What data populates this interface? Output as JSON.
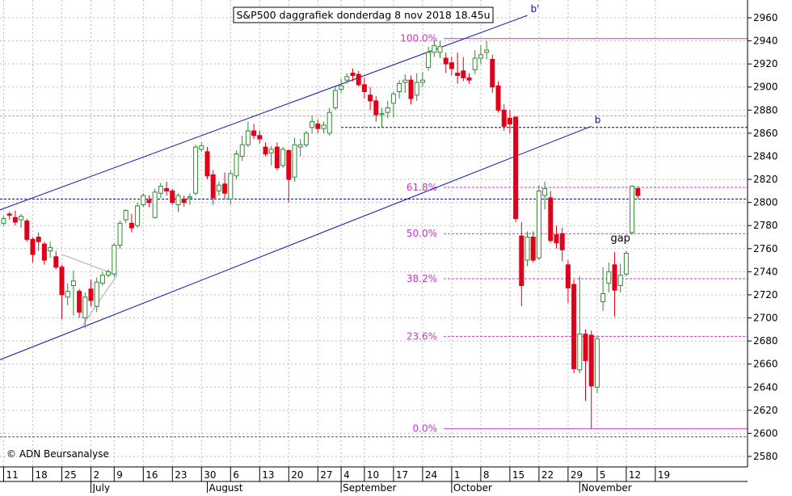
{
  "chart_data": {
    "type": "candlestick",
    "title": "S&P500 daggrafiek donderdag 8 nov 2018 18.45u",
    "copyright": "© ADN Beursanalyse",
    "ylim": [
      2570,
      2970
    ],
    "y_ticks": [
      2580,
      2600,
      2620,
      2640,
      2660,
      2680,
      2700,
      2720,
      2740,
      2760,
      2780,
      2800,
      2820,
      2840,
      2860,
      2880,
      2900,
      2920,
      2940,
      2960
    ],
    "x_day_ticks": [
      {
        "label": "11",
        "idx": 0
      },
      {
        "label": "18",
        "idx": 5
      },
      {
        "label": "25",
        "idx": 10
      },
      {
        "label": "2",
        "idx": 15
      },
      {
        "label": "9",
        "idx": 19
      },
      {
        "label": "16",
        "idx": 24
      },
      {
        "label": "23",
        "idx": 29
      },
      {
        "label": "30",
        "idx": 34
      },
      {
        "label": "6",
        "idx": 39
      },
      {
        "label": "13",
        "idx": 44
      },
      {
        "label": "20",
        "idx": 49
      },
      {
        "label": "27",
        "idx": 54
      },
      {
        "label": "4",
        "idx": 58
      },
      {
        "label": "10",
        "idx": 62
      },
      {
        "label": "17",
        "idx": 67
      },
      {
        "label": "24",
        "idx": 72
      },
      {
        "label": "1",
        "idx": 77
      },
      {
        "label": "8",
        "idx": 82
      },
      {
        "label": "15",
        "idx": 87
      },
      {
        "label": "22",
        "idx": 92
      },
      {
        "label": "29",
        "idx": 97
      },
      {
        "label": "5",
        "idx": 102
      },
      {
        "label": "12",
        "idx": 107
      },
      {
        "label": "19",
        "idx": 112
      }
    ],
    "months": [
      {
        "label": "July",
        "idx": 15
      },
      {
        "label": "August",
        "idx": 35
      },
      {
        "label": "September",
        "idx": 58
      },
      {
        "label": "October",
        "idx": 77
      },
      {
        "label": "November",
        "idx": 99
      }
    ],
    "candles": [
      {
        "o": 2782,
        "h": 2788,
        "l": 2780,
        "c": 2786
      },
      {
        "o": 2790,
        "h": 2792,
        "l": 2785,
        "c": 2789
      },
      {
        "o": 2787,
        "h": 2793,
        "l": 2780,
        "c": 2783
      },
      {
        "o": 2785,
        "h": 2790,
        "l": 2778,
        "c": 2788
      },
      {
        "o": 2784,
        "h": 2786,
        "l": 2766,
        "c": 2768
      },
      {
        "o": 2768,
        "h": 2770,
        "l": 2748,
        "c": 2755
      },
      {
        "o": 2770,
        "h": 2774,
        "l": 2758,
        "c": 2766
      },
      {
        "o": 2764,
        "h": 2766,
        "l": 2746,
        "c": 2750
      },
      {
        "o": 2758,
        "h": 2766,
        "l": 2752,
        "c": 2761
      },
      {
        "o": 2753,
        "h": 2758,
        "l": 2742,
        "c": 2744
      },
      {
        "o": 2744,
        "h": 2746,
        "l": 2699,
        "c": 2720
      },
      {
        "o": 2718,
        "h": 2730,
        "l": 2711,
        "c": 2723
      },
      {
        "o": 2728,
        "h": 2741,
        "l": 2702,
        "c": 2732
      },
      {
        "o": 2723,
        "h": 2725,
        "l": 2700,
        "c": 2705
      },
      {
        "o": 2700,
        "h": 2722,
        "l": 2691,
        "c": 2718
      },
      {
        "o": 2725,
        "h": 2733,
        "l": 2710,
        "c": 2715
      },
      {
        "o": 2710,
        "h": 2735,
        "l": 2705,
        "c": 2731
      },
      {
        "o": 2730,
        "h": 2740,
        "l": 2728,
        "c": 2737
      },
      {
        "o": 2737,
        "h": 2742,
        "l": 2735,
        "c": 2740
      },
      {
        "o": 2738,
        "h": 2765,
        "l": 2735,
        "c": 2763
      },
      {
        "o": 2763,
        "h": 2784,
        "l": 2760,
        "c": 2782
      },
      {
        "o": 2785,
        "h": 2794,
        "l": 2782,
        "c": 2793
      },
      {
        "o": 2782,
        "h": 2790,
        "l": 2774,
        "c": 2778
      },
      {
        "o": 2780,
        "h": 2800,
        "l": 2778,
        "c": 2797
      },
      {
        "o": 2798,
        "h": 2808,
        "l": 2796,
        "c": 2806
      },
      {
        "o": 2802,
        "h": 2806,
        "l": 2796,
        "c": 2800
      },
      {
        "o": 2787,
        "h": 2812,
        "l": 2786,
        "c": 2809
      },
      {
        "o": 2808,
        "h": 2817,
        "l": 2804,
        "c": 2814
      },
      {
        "o": 2812,
        "h": 2818,
        "l": 2806,
        "c": 2810
      },
      {
        "o": 2810,
        "h": 2812,
        "l": 2798,
        "c": 2800
      },
      {
        "o": 2798,
        "h": 2808,
        "l": 2792,
        "c": 2806
      },
      {
        "o": 2803,
        "h": 2806,
        "l": 2796,
        "c": 2800
      },
      {
        "o": 2804,
        "h": 2808,
        "l": 2798,
        "c": 2805
      },
      {
        "o": 2808,
        "h": 2850,
        "l": 2806,
        "c": 2848
      },
      {
        "o": 2846,
        "h": 2852,
        "l": 2844,
        "c": 2849
      },
      {
        "o": 2844,
        "h": 2848,
        "l": 2820,
        "c": 2823
      },
      {
        "o": 2824,
        "h": 2828,
        "l": 2798,
        "c": 2804
      },
      {
        "o": 2810,
        "h": 2818,
        "l": 2806,
        "c": 2815
      },
      {
        "o": 2816,
        "h": 2826,
        "l": 2803,
        "c": 2808
      },
      {
        "o": 2803,
        "h": 2828,
        "l": 2798,
        "c": 2825
      },
      {
        "o": 2823,
        "h": 2845,
        "l": 2820,
        "c": 2842
      },
      {
        "o": 2840,
        "h": 2858,
        "l": 2836,
        "c": 2850
      },
      {
        "o": 2850,
        "h": 2870,
        "l": 2848,
        "c": 2862
      },
      {
        "o": 2862,
        "h": 2868,
        "l": 2855,
        "c": 2858
      },
      {
        "o": 2858,
        "h": 2862,
        "l": 2851,
        "c": 2855
      },
      {
        "o": 2848,
        "h": 2852,
        "l": 2840,
        "c": 2842
      },
      {
        "o": 2843,
        "h": 2849,
        "l": 2832,
        "c": 2846
      },
      {
        "o": 2848,
        "h": 2852,
        "l": 2828,
        "c": 2830
      },
      {
        "o": 2832,
        "h": 2848,
        "l": 2830,
        "c": 2846
      },
      {
        "o": 2845,
        "h": 2846,
        "l": 2800,
        "c": 2820
      },
      {
        "o": 2822,
        "h": 2856,
        "l": 2818,
        "c": 2850
      },
      {
        "o": 2848,
        "h": 2855,
        "l": 2840,
        "c": 2850
      },
      {
        "o": 2850,
        "h": 2862,
        "l": 2848,
        "c": 2860
      },
      {
        "o": 2865,
        "h": 2875,
        "l": 2860,
        "c": 2870
      },
      {
        "o": 2868,
        "h": 2872,
        "l": 2860,
        "c": 2864
      },
      {
        "o": 2864,
        "h": 2870,
        "l": 2860,
        "c": 2867
      },
      {
        "o": 2860,
        "h": 2882,
        "l": 2858,
        "c": 2878
      },
      {
        "o": 2882,
        "h": 2900,
        "l": 2880,
        "c": 2897
      },
      {
        "o": 2898,
        "h": 2907,
        "l": 2895,
        "c": 2901
      },
      {
        "o": 2906,
        "h": 2912,
        "l": 2903,
        "c": 2909
      },
      {
        "o": 2912,
        "h": 2916,
        "l": 2905,
        "c": 2910
      },
      {
        "o": 2911,
        "h": 2914,
        "l": 2900,
        "c": 2902
      },
      {
        "o": 2902,
        "h": 2908,
        "l": 2890,
        "c": 2896
      },
      {
        "o": 2893,
        "h": 2900,
        "l": 2880,
        "c": 2888
      },
      {
        "o": 2888,
        "h": 2892,
        "l": 2870,
        "c": 2876
      },
      {
        "o": 2876,
        "h": 2882,
        "l": 2865,
        "c": 2877
      },
      {
        "o": 2878,
        "h": 2888,
        "l": 2873,
        "c": 2882
      },
      {
        "o": 2886,
        "h": 2896,
        "l": 2874,
        "c": 2894
      },
      {
        "o": 2896,
        "h": 2906,
        "l": 2890,
        "c": 2903
      },
      {
        "o": 2904,
        "h": 2911,
        "l": 2895,
        "c": 2906
      },
      {
        "o": 2906,
        "h": 2910,
        "l": 2885,
        "c": 2890
      },
      {
        "o": 2893,
        "h": 2912,
        "l": 2888,
        "c": 2904
      },
      {
        "o": 2904,
        "h": 2913,
        "l": 2900,
        "c": 2906
      },
      {
        "o": 2917,
        "h": 2935,
        "l": 2914,
        "c": 2930
      },
      {
        "o": 2930,
        "h": 2940,
        "l": 2926,
        "c": 2936
      },
      {
        "o": 2930,
        "h": 2940,
        "l": 2925,
        "c": 2935
      },
      {
        "o": 2925,
        "h": 2930,
        "l": 2912,
        "c": 2920
      },
      {
        "o": 2921,
        "h": 2926,
        "l": 2910,
        "c": 2916
      },
      {
        "o": 2912,
        "h": 2930,
        "l": 2903,
        "c": 2910
      },
      {
        "o": 2914,
        "h": 2926,
        "l": 2905,
        "c": 2908
      },
      {
        "o": 2908,
        "h": 2912,
        "l": 2903,
        "c": 2906
      },
      {
        "o": 2915,
        "h": 2932,
        "l": 2911,
        "c": 2925
      },
      {
        "o": 2925,
        "h": 2936,
        "l": 2920,
        "c": 2928
      },
      {
        "o": 2930,
        "h": 2940,
        "l": 2924,
        "c": 2932
      },
      {
        "o": 2924,
        "h": 2928,
        "l": 2895,
        "c": 2900
      },
      {
        "o": 2901,
        "h": 2905,
        "l": 2878,
        "c": 2880
      },
      {
        "o": 2880,
        "h": 2885,
        "l": 2862,
        "c": 2866
      },
      {
        "o": 2873,
        "h": 2880,
        "l": 2860,
        "c": 2868
      },
      {
        "o": 2874,
        "h": 2874,
        "l": 2783,
        "c": 2786
      },
      {
        "o": 2771,
        "h": 2783,
        "l": 2710,
        "c": 2728
      },
      {
        "o": 2750,
        "h": 2775,
        "l": 2745,
        "c": 2770
      },
      {
        "o": 2770,
        "h": 2775,
        "l": 2748,
        "c": 2750
      },
      {
        "o": 2752,
        "h": 2815,
        "l": 2750,
        "c": 2810
      },
      {
        "o": 2806,
        "h": 2818,
        "l": 2794,
        "c": 2812
      },
      {
        "o": 2804,
        "h": 2810,
        "l": 2765,
        "c": 2767
      },
      {
        "o": 2772,
        "h": 2780,
        "l": 2760,
        "c": 2765
      },
      {
        "o": 2773,
        "h": 2778,
        "l": 2749,
        "c": 2759
      },
      {
        "o": 2746,
        "h": 2750,
        "l": 2713,
        "c": 2726
      },
      {
        "o": 2729,
        "h": 2733,
        "l": 2652,
        "c": 2656
      },
      {
        "o": 2655,
        "h": 2736,
        "l": 2652,
        "c": 2686
      },
      {
        "o": 2686,
        "h": 2690,
        "l": 2628,
        "c": 2663
      },
      {
        "o": 2685,
        "h": 2689,
        "l": 2604,
        "c": 2641
      },
      {
        "o": 2640,
        "h": 2685,
        "l": 2635,
        "c": 2682
      },
      {
        "o": 2714,
        "h": 2744,
        "l": 2706,
        "c": 2721
      },
      {
        "o": 2730,
        "h": 2748,
        "l": 2722,
        "c": 2740
      },
      {
        "o": 2746,
        "h": 2757,
        "l": 2701,
        "c": 2724
      },
      {
        "o": 2728,
        "h": 2747,
        "l": 2722,
        "c": 2737
      },
      {
        "o": 2738,
        "h": 2758,
        "l": 2736,
        "c": 2756
      },
      {
        "o": 2774,
        "h": 2815,
        "l": 2772,
        "c": 2814
      },
      {
        "o": 2812,
        "h": 2814,
        "l": 2803,
        "c": 2806
      }
    ],
    "fib_levels": [
      {
        "label": "100.0%",
        "value": 2942,
        "style": "solid"
      },
      {
        "label": "61.8%",
        "value": 2813,
        "style": "dashed"
      },
      {
        "label": "50.0%",
        "value": 2773,
        "style": "dashed"
      },
      {
        "label": "38.2%",
        "value": 2734,
        "style": "dashed"
      },
      {
        "label": "23.6%",
        "value": 2684,
        "style": "dashed"
      },
      {
        "label": "0.0%",
        "value": 2604,
        "style": "solid"
      }
    ],
    "horizontal_lines": [
      {
        "value": 2865,
        "color": "#000080",
        "from_idx": 58
      },
      {
        "value": 2803,
        "color": "#000080",
        "from_idx": -2
      },
      {
        "value": 2875,
        "color": "#aaaaaa",
        "from_idx": -2
      },
      {
        "value": 2597,
        "color": "#555555",
        "from_idx": -2
      }
    ],
    "channel_lines": [
      {
        "label": "b'",
        "p1": {
          "idx": -2,
          "v": 2791
        },
        "p2": {
          "idx": 90,
          "v": 2962
        }
      },
      {
        "label": "b",
        "p1": {
          "idx": -2,
          "v": 2661
        },
        "p2": {
          "idx": 101,
          "v": 2866
        }
      }
    ],
    "annotations": [
      {
        "text": "gap",
        "idx": 106,
        "v": 2766
      }
    ],
    "colors": {
      "up": "#2e8b2e",
      "down": "#e0001a",
      "fib": "#cc33cc",
      "channel": "#1010b0",
      "grid": "#bdbdbd",
      "triangle": "#aaaaaa"
    }
  }
}
